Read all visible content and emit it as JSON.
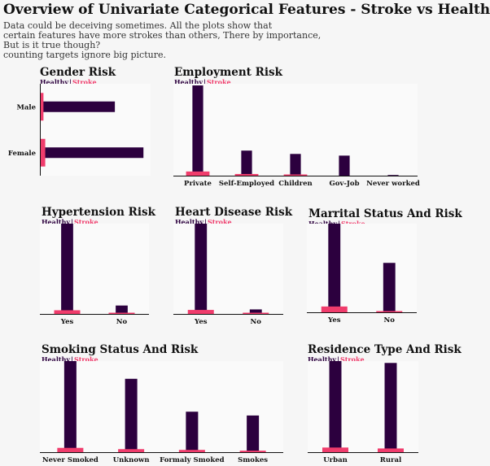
{
  "title": "Overview of Univariate Categorical Features - Stroke vs Healthy",
  "subtitle": "Data could be deceiving sometimes. All the plots show that\ncertain features have more strokes than others, There by importance,\nBut is it true though?\ncounting targets ignore big picture.",
  "colors": {
    "healthy": "#2c003e",
    "stroke": "#f03c6c",
    "plot_bg": "#fafafa"
  },
  "legend": {
    "healthy": "Healthy",
    "sep": "|",
    "stroke": "Stroke"
  },
  "chart_data": [
    {
      "id": "gender",
      "type": "bar",
      "orientation": "horizontal",
      "title": "Gender Risk",
      "categories": [
        "Male",
        "Female"
      ],
      "series": [
        {
          "name": "Healthy",
          "values": [
            0.42,
            0.58
          ]
        },
        {
          "name": "Stroke",
          "values": [
            0.02,
            0.03
          ]
        }
      ],
      "xlim": [
        0,
        0.62
      ]
    },
    {
      "id": "employment",
      "type": "bar",
      "title": "Employment Risk",
      "categories": [
        "Private",
        "Self-Employed",
        "Children",
        "Gov-Job",
        "Never worked"
      ],
      "series": [
        {
          "name": "Healthy",
          "values": [
            0.54,
            0.15,
            0.13,
            0.12,
            0.004
          ]
        },
        {
          "name": "Stroke",
          "values": [
            0.025,
            0.01,
            0.002,
            0.0,
            0.0
          ]
        }
      ],
      "ylim": [
        0,
        0.55
      ]
    },
    {
      "id": "hypertension",
      "type": "bar",
      "title": "Hypertension Risk",
      "categories": [
        "Yes",
        "No"
      ],
      "series": [
        {
          "name": "Healthy",
          "values": [
            0.86,
            0.08
          ]
        },
        {
          "name": "Stroke",
          "values": [
            0.035,
            0.008
          ]
        }
      ],
      "ylim": [
        0,
        0.86
      ]
    },
    {
      "id": "heart",
      "type": "bar",
      "title": "Heart Disease Risk",
      "categories": [
        "Yes",
        "No"
      ],
      "series": [
        {
          "name": "Healthy",
          "values": [
            0.9,
            0.045
          ]
        },
        {
          "name": "Stroke",
          "values": [
            0.04,
            0.008
          ]
        }
      ],
      "ylim": [
        0,
        0.9
      ]
    },
    {
      "id": "married",
      "type": "bar",
      "title": "Marrital Status And Risk",
      "categories": [
        "Yes",
        "No"
      ],
      "series": [
        {
          "name": "Healthy",
          "values": [
            0.61,
            0.34
          ]
        },
        {
          "name": "Stroke",
          "values": [
            0.04,
            0.006
          ]
        }
      ],
      "ylim": [
        0,
        0.61
      ]
    },
    {
      "id": "smoking",
      "type": "bar",
      "title": "Smoking Status And Risk",
      "categories": [
        "Never Smoked",
        "Unknown",
        "Formaly Smoked",
        "Smokes"
      ],
      "series": [
        {
          "name": "Healthy",
          "values": [
            0.36,
            0.29,
            0.16,
            0.145
          ]
        },
        {
          "name": "Stroke",
          "values": [
            0.017,
            0.012,
            0.009,
            0.006
          ]
        }
      ],
      "ylim": [
        0,
        0.36
      ]
    },
    {
      "id": "residence",
      "type": "bar",
      "title": "Residence Type And Risk",
      "categories": [
        "Urban",
        "Rural"
      ],
      "series": [
        {
          "name": "Healthy",
          "values": [
            0.49,
            0.48
          ]
        },
        {
          "name": "Stroke",
          "values": [
            0.025,
            0.02
          ]
        }
      ],
      "ylim": [
        0,
        0.49
      ]
    }
  ]
}
